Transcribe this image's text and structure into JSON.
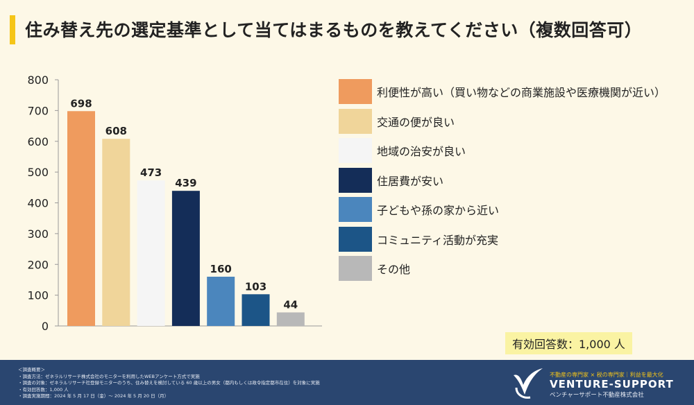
{
  "header": {
    "title": "住み替え先の選定基準として当てはまるものを教えてください（複数回答可）"
  },
  "chart_data": {
    "type": "bar",
    "title": "住み替え先の選定基準として当てはまるものを教えてください（複数回答可）",
    "categories": [
      "利便性が高い（買い物などの商業施設や医療機関が近い）",
      "交通の便が良い",
      "地域の治安が良い",
      "住居費が安い",
      "子どもや孫の家から近い",
      "コミュニティ活動が充実",
      "その他"
    ],
    "values": [
      698,
      608,
      473,
      439,
      160,
      103,
      44
    ],
    "colors": [
      "#ef9b5e",
      "#f0d59a",
      "#f5f5f5",
      "#142d58",
      "#4b86bd",
      "#1c5587",
      "#b8b8b8"
    ],
    "ylim": [
      0,
      800
    ],
    "yticks": [
      "0",
      "100",
      "200",
      "300",
      "400",
      "500",
      "600",
      "700",
      "800"
    ],
    "data_labels": [
      "698",
      "608",
      "473",
      "439",
      "160",
      "103",
      "44"
    ],
    "grid": false,
    "legend_position": "right"
  },
  "respondents": "有効回答数：1,000 人",
  "footer": {
    "notes": [
      "＜調査概要＞",
      "・調査方法：ゼネラルリサーチ株式会社のモニターを利用したWEBアンケート方式で実施",
      "・調査の対象：ゼネラルリサーチ社登録モニターのうち、住み替えを検討している 60 歳以上の男女（都内もしくは政令指定都市在住）を対象に実施",
      "・有効回答数：1,000 人",
      "・調査実施期間：2024 年 5 月 17 日（金）～ 2024 年 5 月 20 日（月）"
    ],
    "logo_tagline": "不動産の専門家 × 税の専門家｜利益を最大化",
    "logo_name": "VENTURE-SUPPORT",
    "logo_sub": "ベンチャーサポート不動産株式会社"
  }
}
